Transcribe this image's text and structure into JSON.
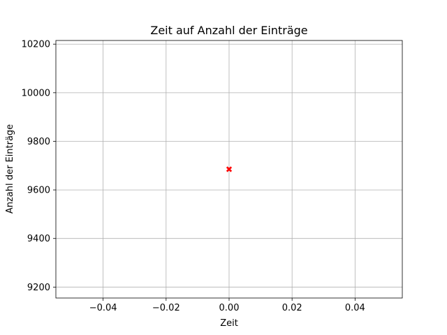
{
  "chart_data": {
    "type": "scatter",
    "title": "Zeit auf Anzahl der Einträge",
    "xlabel": "Zeit",
    "ylabel": "Anzahl der Einträge",
    "xlim": [
      -0.055,
      0.055
    ],
    "ylim": [
      9155,
      10215
    ],
    "xticks": [
      -0.04,
      -0.02,
      0.0,
      0.02,
      0.04
    ],
    "xtick_labels": [
      "−0.04",
      "−0.02",
      "0.00",
      "0.02",
      "0.04"
    ],
    "yticks": [
      9200,
      9400,
      9600,
      9800,
      10000,
      10200
    ],
    "ytick_labels": [
      "9200",
      "9400",
      "9600",
      "9800",
      "10000",
      "10200"
    ],
    "grid": true,
    "series": [
      {
        "marker": "x",
        "color": "#ff0000",
        "points": [
          {
            "x": 0.0,
            "y": 9685
          }
        ]
      }
    ]
  }
}
